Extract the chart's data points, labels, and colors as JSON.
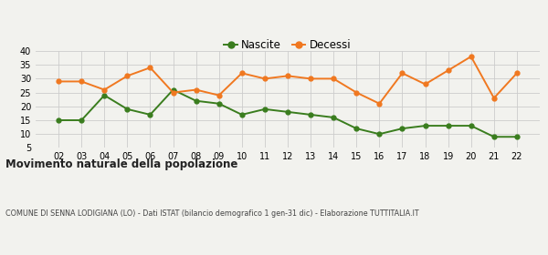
{
  "years": [
    "02",
    "03",
    "04",
    "05",
    "06",
    "07",
    "08",
    "09",
    "10",
    "11",
    "12",
    "13",
    "14",
    "15",
    "16",
    "17",
    "18",
    "19",
    "20",
    "21",
    "22"
  ],
  "nascite": [
    15,
    15,
    24,
    19,
    17,
    26,
    22,
    21,
    17,
    19,
    18,
    17,
    16,
    12,
    10,
    12,
    13,
    13,
    13,
    9,
    9
  ],
  "decessi": [
    29,
    29,
    26,
    31,
    34,
    25,
    26,
    24,
    32,
    30,
    31,
    30,
    30,
    25,
    21,
    32,
    28,
    33,
    38,
    23,
    32
  ],
  "nascite_color": "#3a7d1e",
  "decessi_color": "#f07820",
  "ylim": [
    5,
    40
  ],
  "yticks": [
    5,
    10,
    15,
    20,
    25,
    30,
    35,
    40
  ],
  "title": "Movimento naturale della popolazione",
  "subtitle": "COMUNE DI SENNA LODIGIANA (LO) - Dati ISTAT (bilancio demografico 1 gen-31 dic) - Elaborazione TUTTITALIA.IT",
  "legend_nascite": "Nascite",
  "legend_decessi": "Decessi",
  "bg_color": "#f2f2ee",
  "grid_color": "#cccccc"
}
